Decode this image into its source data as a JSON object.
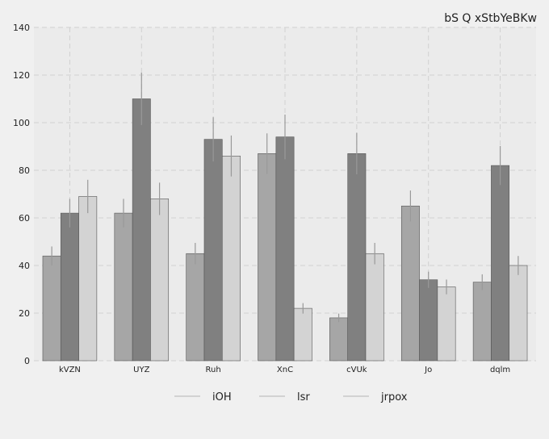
{
  "chart_data": {
    "type": "bar",
    "title": "bS Q xStbYeBKw",
    "xlabel": "",
    "ylabel": "",
    "categories": [
      "kVZN",
      "UYZ",
      "Ruh",
      "XnC",
      "cVUk",
      "Jo",
      "dqlm"
    ],
    "ylim": [
      0,
      140
    ],
    "yticks": [
      0,
      20,
      40,
      60,
      80,
      100,
      120,
      140
    ],
    "grid": true,
    "legend_position": "bottom",
    "series": [
      {
        "name": "iOH",
        "color": "#a6a6a6",
        "values": [
          44,
          62,
          45,
          87,
          18,
          65,
          33
        ],
        "errors": [
          4,
          6,
          4.5,
          8.5,
          1.8,
          6.5,
          3.3
        ]
      },
      {
        "name": "lsr",
        "color": "#808080",
        "values": [
          62,
          110,
          93,
          94,
          87,
          34,
          82
        ],
        "errors": [
          6,
          11,
          9.3,
          9.4,
          8.7,
          3.4,
          8.2
        ]
      },
      {
        "name": "jrpox",
        "color": "#d3d3d3",
        "values": [
          69,
          68,
          86,
          22,
          45,
          31,
          40
        ],
        "errors": [
          7,
          6.8,
          8.6,
          2.2,
          4.5,
          3.1,
          4
        ]
      }
    ]
  }
}
